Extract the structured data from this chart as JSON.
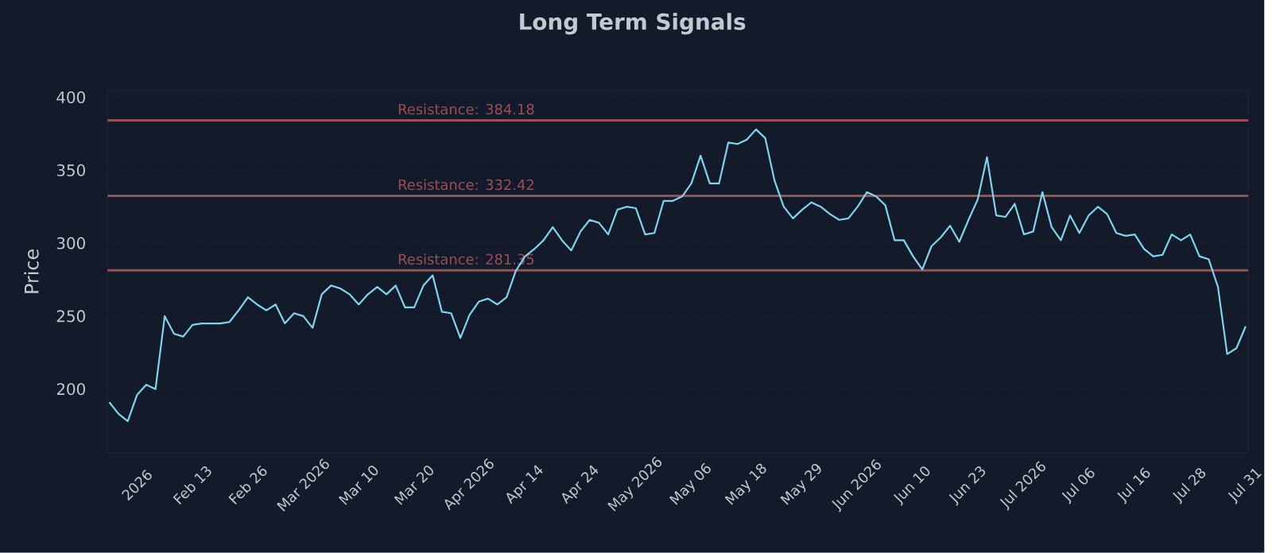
{
  "chart_data": {
    "type": "line",
    "title": "Long Term Signals",
    "ylabel": "Price",
    "categories": [
      null,
      null,
      null,
      "2026",
      null,
      null,
      null,
      null,
      null,
      "Feb 13",
      null,
      null,
      null,
      null,
      null,
      "Feb 26",
      null,
      null,
      null,
      null,
      null,
      "Mar 2026",
      null,
      null,
      null,
      null,
      null,
      "Mar 10",
      null,
      null,
      null,
      null,
      null,
      "Mar 20",
      null,
      null,
      null,
      null,
      null,
      "Apr 2026",
      null,
      null,
      null,
      null,
      null,
      "Apr 14",
      null,
      null,
      null,
      null,
      null,
      "Apr 24",
      null,
      null,
      null,
      null,
      null,
      "May 2026",
      null,
      null,
      null,
      null,
      null,
      "May 06",
      null,
      null,
      null,
      null,
      null,
      "May 18",
      null,
      null,
      null,
      null,
      null,
      "May 29",
      null,
      null,
      null,
      null,
      null,
      "Jun 2026",
      null,
      null,
      null,
      null,
      null,
      "Jun 10",
      null,
      null,
      null,
      null,
      null,
      "Jun 23",
      null,
      null,
      null,
      null,
      null,
      "Jul 2026",
      null,
      null,
      null,
      null,
      null,
      "Jul 06",
      null,
      null,
      null,
      null,
      null,
      "Jul 16",
      null,
      null,
      null,
      null,
      null,
      "Jul 28",
      null,
      null,
      null,
      null,
      null,
      "Jul 31"
    ],
    "series": [
      {
        "color": "#7fd6ec",
        "values": [
          191,
          183,
          178,
          196,
          203,
          200,
          250,
          238,
          236,
          244,
          245,
          245,
          245,
          246,
          254,
          263,
          258,
          254,
          258,
          245,
          252,
          250,
          242,
          265,
          271,
          269,
          265,
          258,
          265,
          270,
          265,
          271,
          256,
          256,
          271,
          278,
          253,
          252,
          235,
          251,
          260,
          262,
          258,
          263,
          281,
          291,
          296,
          302,
          311,
          302,
          295,
          308,
          316,
          314,
          306,
          323,
          325,
          324,
          306,
          307,
          329,
          329,
          332,
          341,
          360,
          341,
          341,
          369,
          368,
          371,
          378,
          372,
          343,
          325,
          317,
          323,
          328,
          325,
          320,
          316,
          317,
          325,
          335,
          332,
          326,
          302,
          302,
          291,
          282,
          298,
          304,
          312,
          301,
          316,
          330,
          359,
          319,
          318,
          327,
          306,
          308,
          335,
          311,
          302,
          319,
          307,
          319,
          325,
          320,
          307,
          305,
          306,
          296,
          291,
          292,
          306,
          302,
          306,
          291,
          289,
          270,
          224,
          228,
          243
        ]
      }
    ],
    "ylim": [
      156,
      405
    ],
    "yticks": [
      200,
      250,
      300,
      350,
      400
    ],
    "grid": "y",
    "line_style": "solid",
    "ref_lines": [
      {
        "axis": "y",
        "value": 384.18,
        "label": "Resistance: 384.18",
        "color": "#9b4d58"
      },
      {
        "axis": "y",
        "value": 332.42,
        "label": "Resistance: 332.42",
        "color": "#9b4d58"
      },
      {
        "axis": "y",
        "value": 281.35,
        "label": "Resistance: 281.35",
        "color": "#9b4d58"
      }
    ]
  }
}
